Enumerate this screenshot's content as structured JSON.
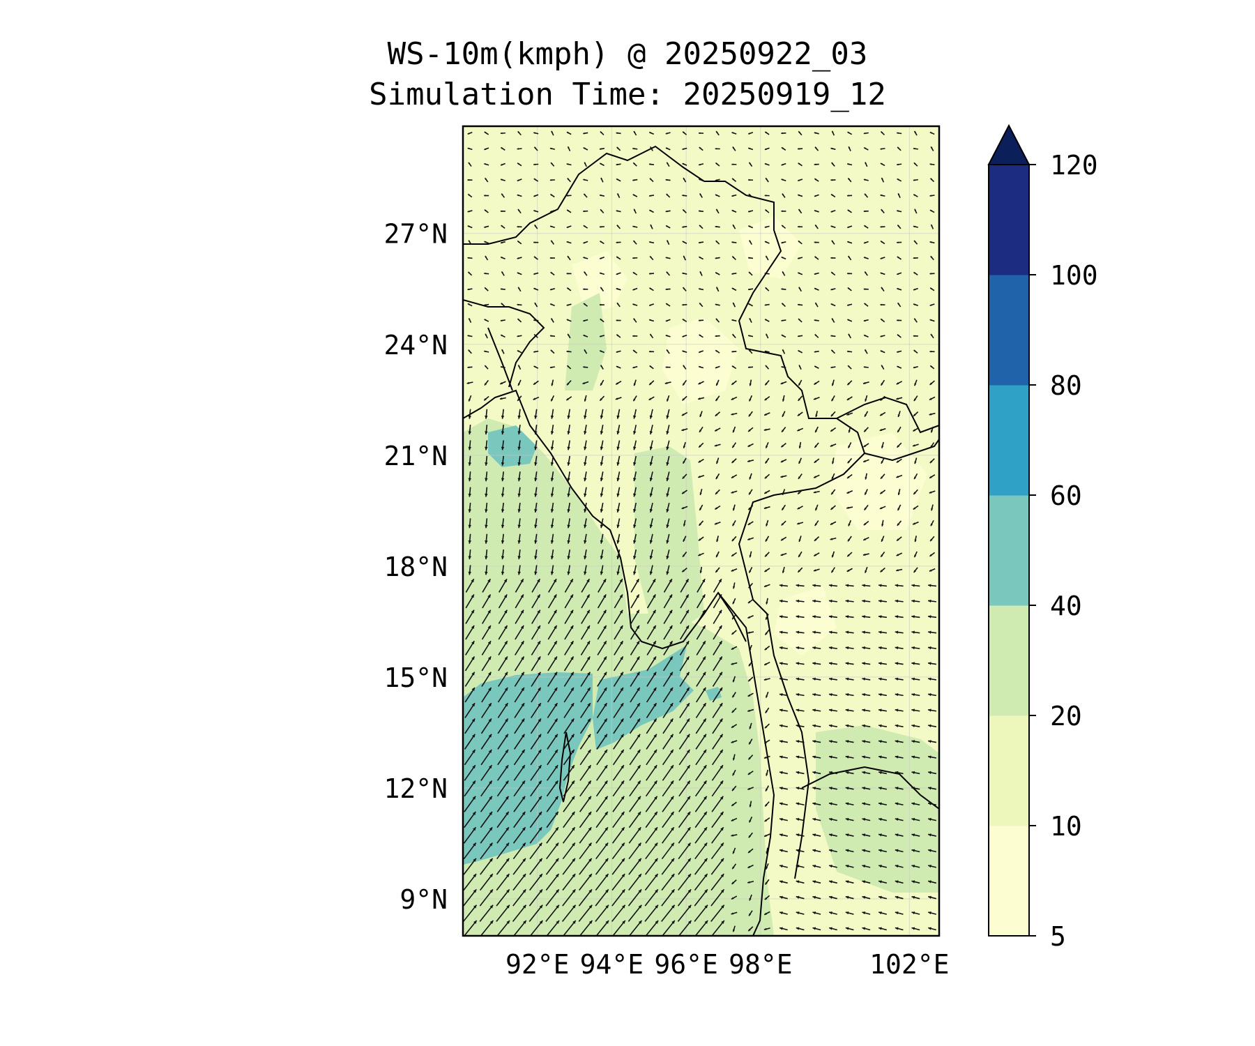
{
  "title": {
    "line1": "WS-10m(kmph) @ 20250922_03",
    "line2": "Simulation Time: 20250919_12"
  },
  "map": {
    "region": "Myanmar and surroundings",
    "lon_range": [
      90.0,
      102.8
    ],
    "lat_range": [
      8.0,
      29.9
    ],
    "lat_ticks": [
      {
        "value": 27,
        "label": "27°N"
      },
      {
        "value": 24,
        "label": "24°N"
      },
      {
        "value": 21,
        "label": "21°N"
      },
      {
        "value": 18,
        "label": "18°N"
      },
      {
        "value": 15,
        "label": "15°N"
      },
      {
        "value": 12,
        "label": "12°N"
      },
      {
        "value": 9,
        "label": "9°N"
      }
    ],
    "lon_ticks": [
      {
        "value": 92,
        "label": "92°E"
      },
      {
        "value": 94,
        "label": "94°E"
      },
      {
        "value": 96,
        "label": "96°E"
      },
      {
        "value": 98,
        "label": "98°E"
      },
      {
        "value": 102,
        "label": "102°E"
      }
    ],
    "gridlines": true
  },
  "colorbar": {
    "label_values": [
      5,
      10,
      20,
      40,
      60,
      80,
      100,
      120
    ],
    "labels": [
      "5",
      "10",
      "20",
      "40",
      "60",
      "80",
      "100",
      "120"
    ],
    "colors": [
      "#fcfed2",
      "#eef7bb",
      "#cfebb2",
      "#79c7bd",
      "#2fa1c6",
      "#2163aa",
      "#1c2c80"
    ],
    "extend_color": "#0b1f5a"
  },
  "colors": {
    "coastline": "#000000",
    "arrow": "#111111"
  }
}
